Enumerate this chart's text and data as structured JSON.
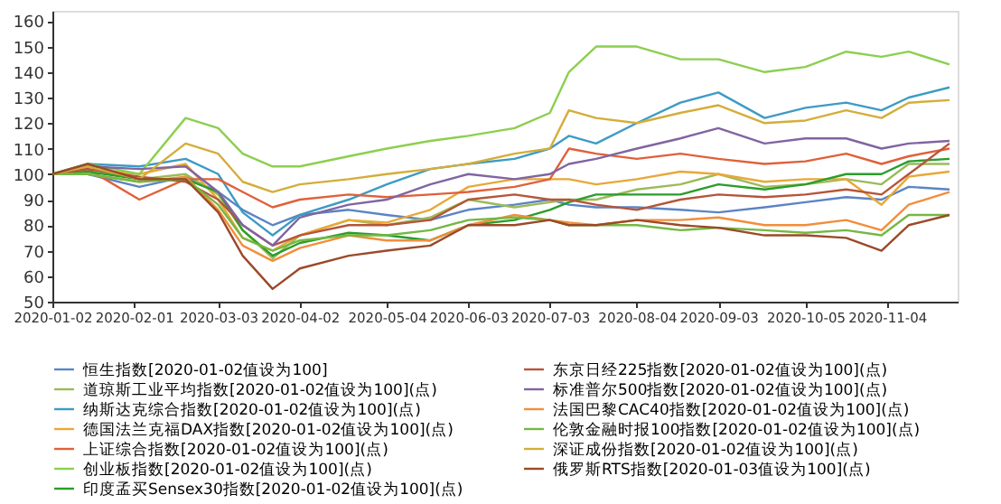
{
  "chart_data": {
    "type": "line",
    "x": [
      "2020-01-02",
      "2020-01-15",
      "2020-02-03",
      "2020-02-20",
      "2020-03-03",
      "2020-03-12",
      "2020-03-23",
      "2020-04-02",
      "2020-04-20",
      "2020-05-04",
      "2020-05-20",
      "2020-06-03",
      "2020-06-20",
      "2020-07-03",
      "2020-07-10",
      "2020-07-20",
      "2020-08-04",
      "2020-08-20",
      "2020-09-03",
      "2020-09-20",
      "2020-10-05",
      "2020-10-20",
      "2020-11-02",
      "2020-11-12",
      "2020-11-27"
    ],
    "series": [
      {
        "name": "恒生指数[2020-01-02值设为100]",
        "color": "#5b84c4",
        "values": [
          100,
          100,
          95,
          99,
          93,
          86,
          80,
          84,
          86,
          84,
          82,
          86,
          88,
          90,
          88,
          87,
          87,
          86,
          85,
          87,
          89,
          91,
          90,
          95,
          94
        ]
      },
      {
        "name": "道琼斯工业平均指数[2020-01-02值设为100](点)",
        "color": "#9bbb59",
        "values": [
          100,
          102,
          98,
          100,
          92,
          78,
          67,
          76,
          82,
          80,
          83,
          90,
          87,
          89,
          90,
          90,
          94,
          96,
          100,
          95,
          96,
          98,
          96,
          104,
          104
        ]
      },
      {
        "name": "纳斯达克综合指数[2020-01-02值设为100](点)",
        "color": "#3d9bc4",
        "values": [
          100,
          104,
          103,
          106,
          100,
          85,
          76,
          84,
          90,
          96,
          102,
          104,
          106,
          110,
          115,
          112,
          120,
          128,
          132,
          122,
          126,
          128,
          125,
          130,
          134
        ]
      },
      {
        "name": "德国法兰克福DAX指数[2020-01-02值设为100](点)",
        "color": "#e8a838",
        "values": [
          100,
          102,
          100,
          104,
          90,
          75,
          70,
          76,
          82,
          81,
          86,
          95,
          98,
          98,
          98,
          96,
          98,
          101,
          100,
          97,
          98,
          98,
          88,
          99,
          101
        ]
      },
      {
        "name": "上证综合指数[2020-01-02值设为100](点)",
        "color": "#e0603a",
        "values": [
          100,
          102,
          90,
          98,
          98,
          93,
          87,
          90,
          92,
          91,
          92,
          93,
          95,
          98,
          110,
          108,
          106,
          108,
          106,
          104,
          105,
          108,
          104,
          107,
          110
        ]
      },
      {
        "name": "创业板指数[2020-01-02值设为100](点)",
        "color": "#8ccf4f",
        "values": [
          100,
          104,
          100,
          122,
          118,
          108,
          103,
          103,
          107,
          110,
          113,
          115,
          118,
          124,
          140,
          150,
          150,
          145,
          145,
          140,
          142,
          148,
          146,
          148,
          143
        ]
      },
      {
        "name": "印度孟买Sensex30指数[2020-01-02值设为100](点)",
        "color": "#2a9d2a",
        "values": [
          100,
          101,
          98,
          98,
          93,
          78,
          68,
          73,
          77,
          76,
          74,
          80,
          82,
          86,
          89,
          92,
          92,
          92,
          96,
          94,
          96,
          100,
          100,
          105,
          106
        ]
      },
      {
        "name": "东京日经225指数[2020-01-02值设为100](点)",
        "color": "#b5553a",
        "values": [
          100,
          102,
          99,
          97,
          90,
          80,
          72,
          76,
          80,
          80,
          82,
          90,
          92,
          90,
          90,
          88,
          86,
          90,
          92,
          91,
          92,
          94,
          92,
          100,
          112
        ]
      },
      {
        "name": "标准普尔500指数[2020-01-02值设为100](点)",
        "color": "#8064a2",
        "values": [
          100,
          103,
          102,
          103,
          93,
          80,
          72,
          83,
          88,
          90,
          96,
          100,
          98,
          100,
          104,
          106,
          110,
          114,
          118,
          112,
          114,
          114,
          110,
          112,
          113
        ]
      },
      {
        "name": "法国巴黎CAC40指数[2020-01-02值设为100](点)",
        "color": "#f28e3b",
        "values": [
          100,
          100,
          97,
          99,
          86,
          72,
          66,
          71,
          76,
          74,
          74,
          80,
          84,
          82,
          81,
          80,
          82,
          82,
          83,
          80,
          80,
          82,
          78,
          88,
          93
        ]
      },
      {
        "name": "伦敦金融时报100指数[2020-01-02值设为100](点)",
        "color": "#74b843",
        "values": [
          100,
          100,
          97,
          98,
          88,
          75,
          70,
          74,
          76,
          76,
          78,
          82,
          83,
          82,
          80,
          80,
          80,
          78,
          79,
          78,
          77,
          78,
          76,
          84,
          84
        ]
      },
      {
        "name": "深证成份指数[2020-01-02值设为100](点)",
        "color": "#d4ad3a",
        "values": [
          100,
          103,
          98,
          112,
          108,
          97,
          93,
          96,
          98,
          100,
          102,
          104,
          108,
          110,
          125,
          122,
          120,
          124,
          127,
          120,
          121,
          125,
          122,
          128,
          129
        ]
      },
      {
        "name": "俄罗斯RTS指数[2020-01-03值设为100](点)",
        "color": "#9a4a28",
        "values": [
          100,
          104,
          98,
          98,
          85,
          68,
          55,
          63,
          68,
          70,
          72,
          80,
          80,
          82,
          80,
          80,
          82,
          80,
          79,
          76,
          76,
          75,
          70,
          80,
          84
        ]
      }
    ],
    "xlim": [
      "2020-01-02",
      "2020-11-30"
    ],
    "xticks": [
      "2020-01-02",
      "2020-02-01",
      "2020-03-03",
      "2020-04-02",
      "2020-05-04",
      "2020-06-03",
      "2020-07-03",
      "2020-08-04",
      "2020-09-03",
      "2020-10-05",
      "2020-11-04"
    ],
    "ylim": [
      50,
      164
    ],
    "yticks": [
      50,
      60,
      70,
      80,
      90,
      100,
      110,
      120,
      130,
      140,
      150,
      160
    ],
    "grid": false,
    "legend": "bottom",
    "marker": "none",
    "line_style": "solid"
  }
}
